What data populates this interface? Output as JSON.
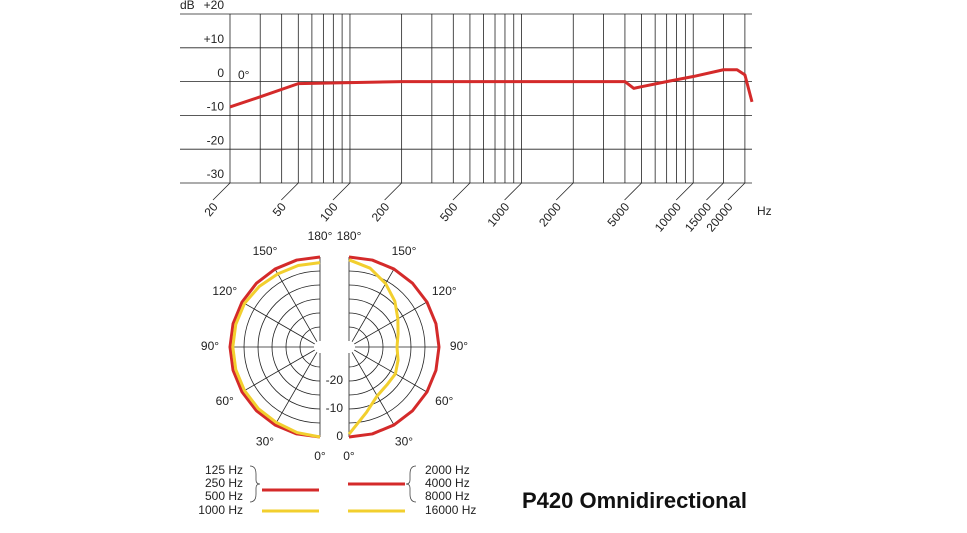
{
  "chart_data": [
    {
      "type": "line",
      "x_log": true,
      "y_label": "dB",
      "x_label": "Hz",
      "xlim": [
        20,
        22000
      ],
      "ylim": [
        -30,
        20
      ],
      "xticks": [
        20,
        50,
        100,
        200,
        500,
        1000,
        2000,
        5000,
        10000,
        15000,
        20000
      ],
      "x_minor_ticks": [
        30,
        40,
        60,
        70,
        80,
        90,
        300,
        400,
        600,
        700,
        800,
        900,
        3000,
        4000,
        6000,
        7000,
        8000,
        9000
      ],
      "yticks": [
        {
          "value": 20,
          "label": "+20"
        },
        {
          "value": 10,
          "label": "+10"
        },
        0,
        -10,
        -20,
        -30
      ],
      "grid": true,
      "series": [
        {
          "name": "0°",
          "color": "#d42a2a",
          "x": [
            20,
            30,
            50,
            100,
            200,
            1000,
            4000,
            4500,
            5000,
            7000,
            10000,
            15000,
            18000,
            20000,
            22000
          ],
          "values": [
            -7.5,
            -4.5,
            -0.6,
            -0.3,
            0,
            0,
            0,
            -2,
            -1.5,
            0,
            1.5,
            3.5,
            3.5,
            2,
            -6
          ]
        }
      ]
    },
    {
      "type": "polar",
      "title": "P420 Omnidirectional",
      "rlim": [
        -30,
        0
      ],
      "rticks": [
        -20,
        -10,
        0
      ],
      "r_minor_ticks": [
        -25,
        -15,
        -5
      ],
      "thetaticks": [
        {
          "value": 0,
          "label": "0°"
        },
        {
          "value": 30,
          "label": "30°"
        },
        {
          "value": 60,
          "label": "60°"
        },
        {
          "value": 90,
          "label": "90°"
        },
        {
          "value": 120,
          "label": "120°"
        },
        {
          "value": 150,
          "label": "150°"
        },
        {
          "value": 180,
          "label": "180°"
        }
      ],
      "theta": [
        0,
        15,
        30,
        45,
        60,
        75,
        90,
        105,
        120,
        135,
        150,
        165,
        180
      ],
      "series": [
        {
          "names": [
            "125 Hz",
            "250 Hz",
            "500 Hz"
          ],
          "side": "left",
          "color": "#d42a2a",
          "values": [
            0,
            0,
            0,
            0,
            0,
            0,
            0,
            0,
            0,
            0,
            0,
            0,
            0
          ]
        },
        {
          "names": [
            "1000 Hz"
          ],
          "side": "left",
          "color": "#f2cf2e",
          "values": [
            0,
            -0.5,
            -1,
            -1,
            -1,
            -1,
            -1,
            -1,
            -1,
            -1.5,
            -2,
            -2,
            -2
          ]
        },
        {
          "names": [
            "2000 Hz",
            "4000 Hz",
            "8000 Hz"
          ],
          "side": "right",
          "color": "#d42a2a",
          "values": [
            0,
            0,
            0,
            0,
            0,
            0,
            0,
            0,
            0,
            0,
            0,
            0,
            0
          ]
        },
        {
          "names": [
            "16000 Hz"
          ],
          "side": "right",
          "color": "#f2cf2e",
          "values": [
            -1,
            -8,
            -12,
            -13,
            -13,
            -14,
            -15,
            -14,
            -12,
            -9,
            -6,
            -3,
            -1
          ]
        }
      ]
    }
  ]
}
